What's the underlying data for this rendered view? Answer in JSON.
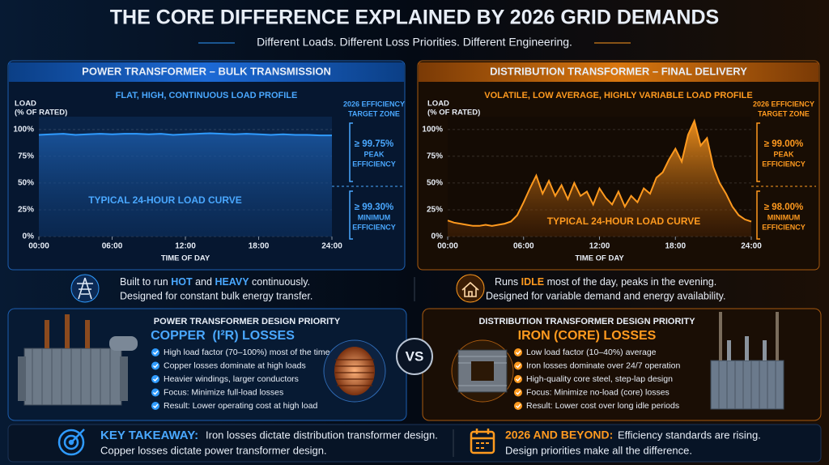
{
  "title": "THE CORE DIFFERENCE EXPLAINED BY 2026 GRID DEMANDS",
  "subtitle": "Different Loads. Different Loss Priorities. Different Engineering.",
  "chart_data": [
    {
      "type": "area",
      "title": "POWER TRANSFORMER – BULK TRANSMISSION",
      "subtitle": "FLAT, HIGH, CONTINUOUS LOAD PROFILE",
      "ylabel": [
        "LOAD",
        "(% OF RATED)"
      ],
      "xlabel": "TIME OF DAY",
      "annotation": "TYPICAL 24-HOUR LOAD CURVE",
      "color": "#2f9bff",
      "x": [
        0,
        1,
        2,
        3,
        4,
        5,
        6,
        7,
        8,
        9,
        10,
        11,
        12,
        13,
        14,
        15,
        16,
        17,
        18,
        19,
        20,
        21,
        22,
        23,
        24
      ],
      "values": [
        95,
        95.5,
        96,
        95,
        95.5,
        96,
        95.5,
        96,
        96,
        95.5,
        96,
        95,
        95.5,
        96,
        96.5,
        96,
        95.5,
        96,
        95.5,
        95,
        95.5,
        95,
        95,
        94.5,
        94.5
      ],
      "xlim": [
        0,
        24
      ],
      "ylim": [
        0,
        112
      ],
      "xticks": [
        {
          "value": 0,
          "label": "00:00"
        },
        {
          "value": 6,
          "label": "06:00"
        },
        {
          "value": 12,
          "label": "12:00"
        },
        {
          "value": 18,
          "label": "18:00"
        },
        {
          "value": 24,
          "label": "24:00"
        }
      ],
      "yticks": [
        {
          "value": 0,
          "label": "0%"
        },
        {
          "value": 25,
          "label": "25%"
        },
        {
          "value": 50,
          "label": "50%"
        },
        {
          "value": 75,
          "label": "75%"
        },
        {
          "value": 100,
          "label": "100%"
        }
      ],
      "grid": true,
      "zone_title": [
        "2026 EFFICIENCY",
        "TARGET ZONE"
      ],
      "targets": [
        {
          "value": "≥ 99.75%",
          "label": [
            "PEAK",
            "EFFICIENCY"
          ]
        },
        {
          "value": "≥ 99.30%",
          "label": [
            "MINIMUM",
            "EFFICIENCY"
          ]
        }
      ]
    },
    {
      "type": "area",
      "title": "DISTRIBUTION TRANSFORMER – FINAL DELIVERY",
      "subtitle": "VOLATILE, LOW AVERAGE, HIGHLY VARIABLE LOAD PROFILE",
      "ylabel": [
        "LOAD",
        "(% OF RATED)"
      ],
      "xlabel": "TIME OF DAY",
      "annotation": "TYPICAL 24-HOUR LOAD CURVE",
      "color": "#ff9a1f",
      "x": [
        0,
        0.5,
        1,
        1.5,
        2,
        2.5,
        3,
        3.5,
        4,
        4.5,
        5,
        5.5,
        6,
        6.5,
        7,
        7.5,
        8,
        8.5,
        9,
        9.5,
        10,
        10.5,
        11,
        11.5,
        12,
        12.5,
        13,
        13.5,
        14,
        14.5,
        15,
        15.5,
        16,
        16.5,
        17,
        17.5,
        18,
        18.5,
        19,
        19.5,
        20,
        20.5,
        21,
        21.5,
        22,
        22.5,
        23,
        23.5,
        24
      ],
      "values": [
        15,
        13,
        12,
        11,
        10,
        10,
        11,
        10,
        11,
        12,
        14,
        20,
        32,
        45,
        57,
        40,
        52,
        38,
        48,
        35,
        50,
        38,
        42,
        30,
        45,
        36,
        30,
        42,
        28,
        38,
        32,
        45,
        40,
        55,
        60,
        72,
        82,
        70,
        95,
        108,
        85,
        92,
        65,
        50,
        40,
        28,
        20,
        16,
        14
      ],
      "xlim": [
        0,
        24
      ],
      "ylim": [
        0,
        112
      ],
      "xticks": [
        {
          "value": 0,
          "label": "00:00"
        },
        {
          "value": 6,
          "label": "06:00"
        },
        {
          "value": 12,
          "label": "12:00"
        },
        {
          "value": 18,
          "label": "18:00"
        },
        {
          "value": 24,
          "label": "24:00"
        }
      ],
      "yticks": [
        {
          "value": 0,
          "label": "0%"
        },
        {
          "value": 25,
          "label": "25%"
        },
        {
          "value": 50,
          "label": "50%"
        },
        {
          "value": 75,
          "label": "75%"
        },
        {
          "value": 100,
          "label": "100%"
        }
      ],
      "grid": true,
      "zone_title": [
        "2026 EFFICIENCY",
        "TARGET ZONE"
      ],
      "targets": [
        {
          "value": "≥ 99.00%",
          "label": [
            "PEAK",
            "EFFICIENCY"
          ]
        },
        {
          "value": "≥ 98.00%",
          "label": [
            "MINIMUM",
            "EFFICIENCY"
          ]
        }
      ]
    }
  ],
  "info": [
    {
      "line1": [
        "Built to run ",
        "HOT",
        " and ",
        "HEAVY",
        " continuously."
      ],
      "line2": "Designed for constant bulk energy transfer."
    },
    {
      "line1": [
        "Runs ",
        "IDLE",
        " most of the day, peaks in the evening."
      ],
      "line2": "Designed for variable demand and energy availability."
    }
  ],
  "cards": [
    {
      "heading": "POWER TRANSFORMER DESIGN PRIORITY",
      "focus": "COPPER  (I²R) LOSSES",
      "bullets": [
        "High load factor (70–100%) most of the time",
        "Copper losses dominate at high loads",
        "Heavier windings, larger conductors",
        "Focus: Minimize full-load losses",
        "Result: Lower operating cost at high load"
      ]
    },
    {
      "heading": "DISTRIBUTION TRANSFORMER DESIGN PRIORITY",
      "focus": "IRON (CORE) LOSSES",
      "bullets": [
        "Low load factor (10–40%) average",
        "Iron losses dominate over 24/7 operation",
        "High-quality core steel, step-lap design",
        "Focus: Minimize no-load (core) losses",
        "Result: Lower cost over long idle periods"
      ]
    }
  ],
  "vs": "VS",
  "footer": [
    {
      "lead": "KEY TAKEAWAY:",
      "line1": "Iron losses dictate distribution transformer design.",
      "line2": "Copper losses dictate power transformer design."
    },
    {
      "lead": "2026 AND BEYOND:",
      "line1": "Efficiency standards are rising.",
      "line2": "Design priorities make all the difference."
    }
  ]
}
